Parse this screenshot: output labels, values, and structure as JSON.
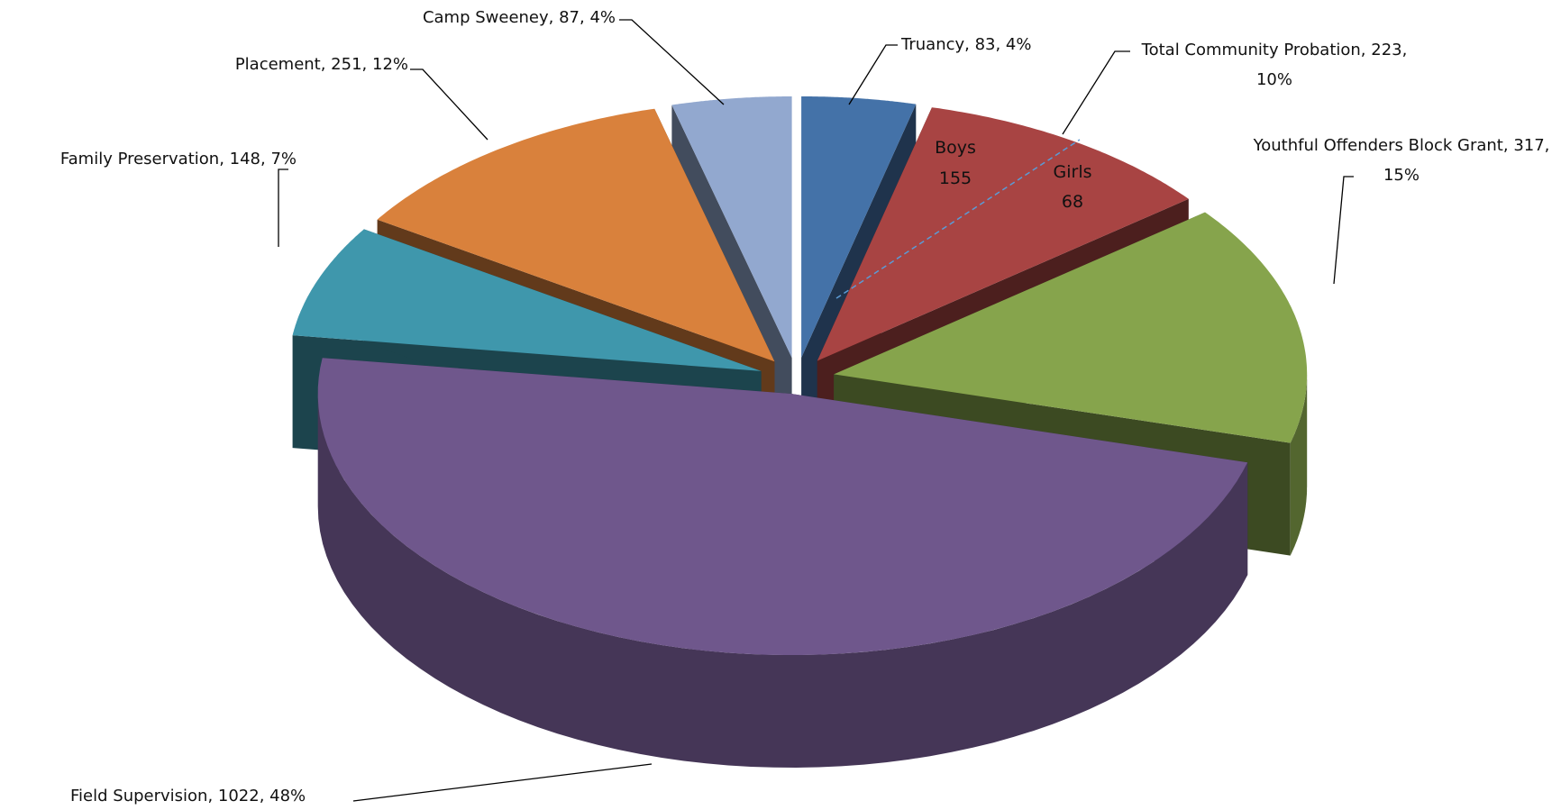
{
  "chart_data": {
    "type": "pie3d",
    "categories": [
      "Truancy",
      "Total Community Probation",
      "Youthful Offenders Block Grant",
      "Field Supervision",
      "Family Preservation",
      "Placement",
      "Camp Sweeney"
    ],
    "values": [
      83,
      223,
      317,
      1022,
      148,
      251,
      87
    ],
    "value_labels": [
      "Truancy, 83, 4%",
      "Total Community Probation, 223, 10%",
      "Youthful Offenders Block Grant, 317, 15%",
      "Field Supervision, 1022, 48%",
      "Family Preservation, 148, 7%",
      "Placement, 251, 12%",
      "Camp Sweeney, 87, 4%"
    ],
    "colors": [
      "#4472a8",
      "#a84443",
      "#86a44c",
      "#6f578c",
      "#3f97ac",
      "#d9813c",
      "#92a8cf"
    ],
    "breakdown": {
      "categories": [
        "Boys",
        "Girls"
      ],
      "values": [
        155,
        68
      ]
    }
  }
}
